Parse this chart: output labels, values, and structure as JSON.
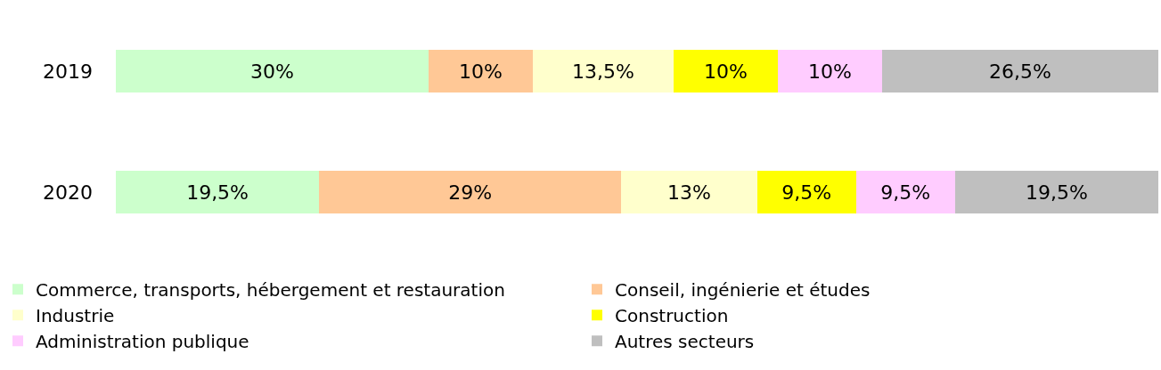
{
  "chart_data": {
    "type": "bar",
    "orientation": "horizontal",
    "stacked": true,
    "categories": [
      "2019",
      "2020"
    ],
    "xlim": [
      0,
      100
    ],
    "tick_labels": "y",
    "grid": false,
    "legend": "bottom",
    "series": [
      {
        "name": "Commerce, transports, hébergement et restauration",
        "color": "#ccffcc",
        "values": [
          30,
          19.5
        ],
        "value_labels": [
          "30%",
          "19,5%"
        ]
      },
      {
        "name": "Conseil, ingénierie et études",
        "color": "#ffc896",
        "values": [
          10,
          29
        ],
        "value_labels": [
          "10%",
          "29%"
        ]
      },
      {
        "name": "Industrie",
        "color": "#ffffcc",
        "values": [
          13.5,
          13
        ],
        "value_labels": [
          "13,5%",
          "13%"
        ]
      },
      {
        "name": "Construction",
        "color": "#ffff00",
        "values": [
          10,
          9.5
        ],
        "value_labels": [
          "10%",
          "9,5%"
        ]
      },
      {
        "name": "Administration publique",
        "color": "#ffccff",
        "values": [
          10,
          9.5
        ],
        "value_labels": [
          "10%",
          "9,5%"
        ]
      },
      {
        "name": "Autres secteurs",
        "color": "#bfbfbf",
        "values": [
          26.5,
          19.5
        ],
        "value_labels": [
          "26,5%",
          "19,5%"
        ]
      }
    ]
  }
}
